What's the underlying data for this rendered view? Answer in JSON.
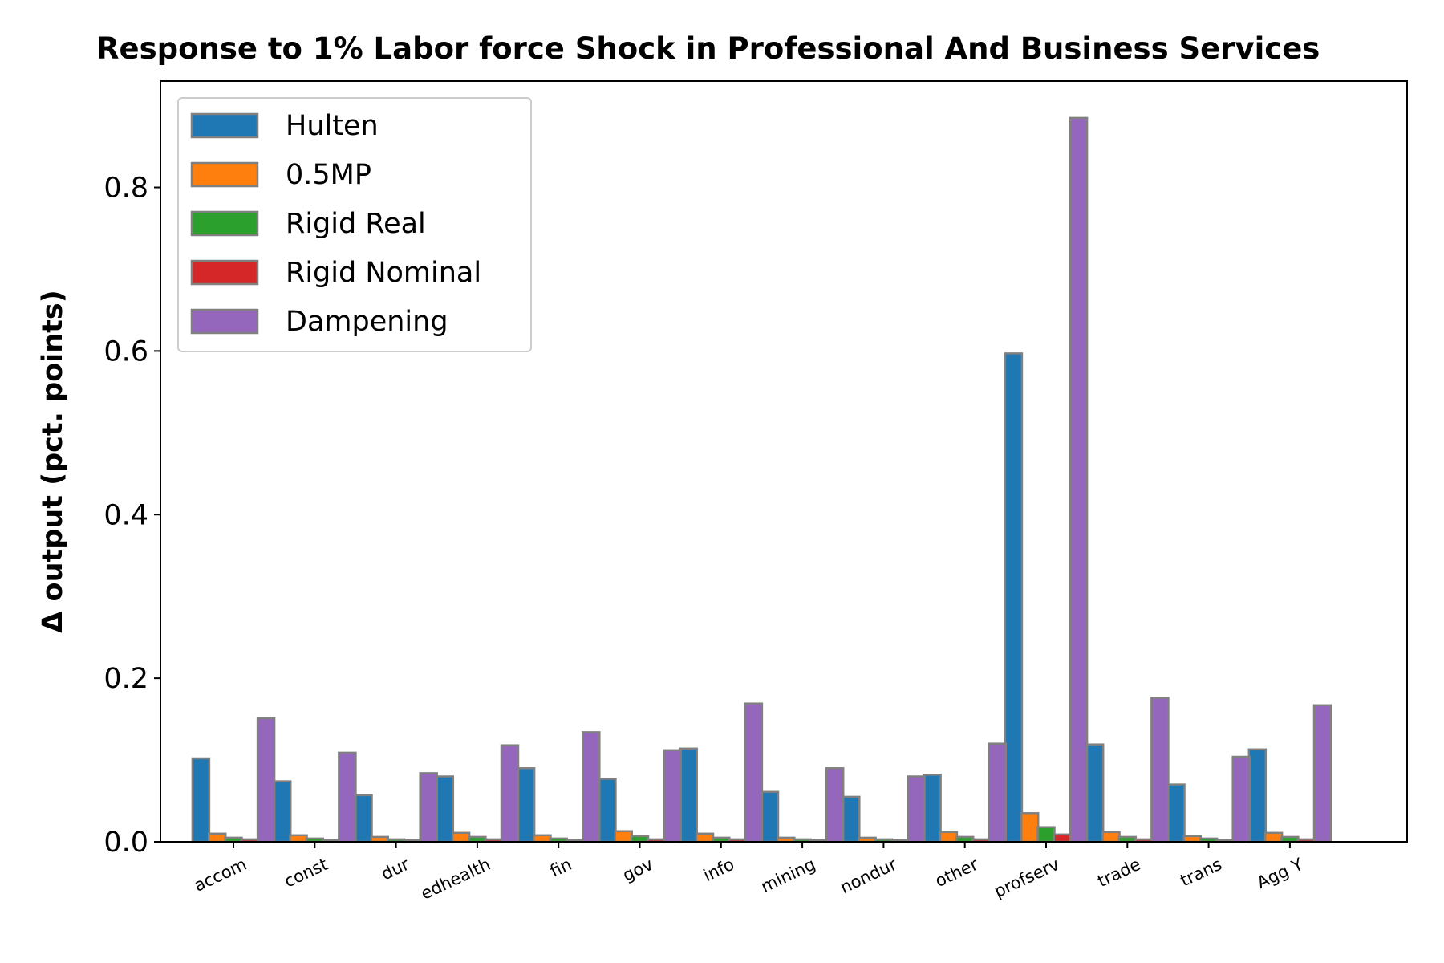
{
  "chart_data": {
    "type": "bar",
    "title": "Response to 1% Labor force Shock in Professional And Business Services",
    "xlabel": "",
    "ylabel": "Δ output (pct. points)",
    "ylim": [
      0,
      0.93
    ],
    "yticks": [
      "0.0",
      "0.2",
      "0.4",
      "0.6",
      "0.8"
    ],
    "grid": false,
    "legend_position": "top-left",
    "categories": [
      "accom",
      "const",
      "dur",
      "edhealth",
      "fin",
      "gov",
      "info",
      "mining",
      "nondur",
      "other",
      "profserv",
      "trade",
      "trans",
      "Agg Y"
    ],
    "series": [
      {
        "name": "Hulten",
        "color": "#1f77b4",
        "values": [
          0.102,
          0.074,
          0.057,
          0.08,
          0.09,
          0.077,
          0.114,
          0.061,
          0.055,
          0.082,
          0.597,
          0.119,
          0.07,
          0.113
        ]
      },
      {
        "name": "0.5MP",
        "color": "#ff7f0e",
        "values": [
          0.01,
          0.008,
          0.006,
          0.011,
          0.008,
          0.013,
          0.01,
          0.005,
          0.005,
          0.012,
          0.035,
          0.012,
          0.007,
          0.011
        ]
      },
      {
        "name": "Rigid Real",
        "color": "#2ca02c",
        "values": [
          0.005,
          0.004,
          0.003,
          0.006,
          0.004,
          0.007,
          0.005,
          0.003,
          0.003,
          0.006,
          0.018,
          0.006,
          0.004,
          0.006
        ]
      },
      {
        "name": "Rigid Nominal",
        "color": "#d62728",
        "values": [
          0.003,
          0.002,
          0.002,
          0.003,
          0.002,
          0.003,
          0.003,
          0.002,
          0.002,
          0.003,
          0.009,
          0.003,
          0.002,
          0.003
        ]
      },
      {
        "name": "Dampening",
        "color": "#9467bd",
        "values": [
          0.151,
          0.109,
          0.084,
          0.118,
          0.134,
          0.112,
          0.169,
          0.09,
          0.08,
          0.12,
          0.885,
          0.176,
          0.104,
          0.167
        ]
      }
    ]
  }
}
